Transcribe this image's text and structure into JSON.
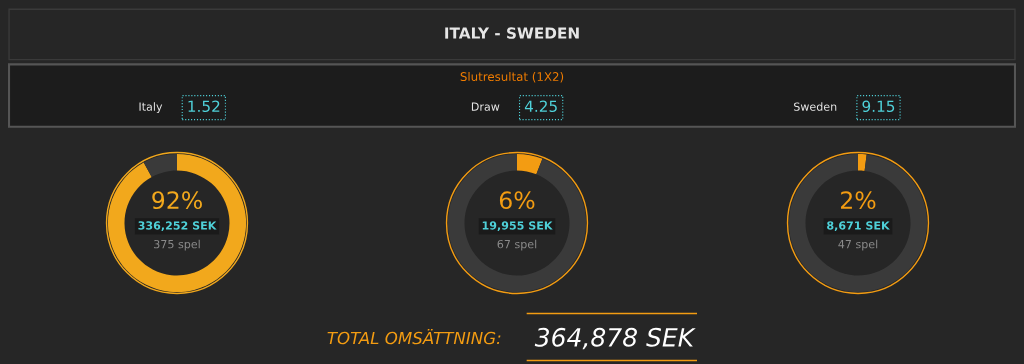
{
  "chart_data": [
    {
      "type": "other",
      "title": "ITALY - SWEDEN",
      "subtitle": "Slutresultat (1X2)",
      "annotations": [
        "Italy",
        "1.52",
        "Draw",
        "4.25",
        "Sweden",
        "9.15"
      ]
    },
    {
      "type": "donut",
      "categories": [
        null,
        null
      ],
      "values": [
        92,
        8
      ],
      "colors": [
        "#f2a81c",
        "#3a3a3a"
      ],
      "annotations": [
        "92%",
        "336,252 SEK",
        "375 spel"
      ]
    },
    {
      "type": "donut",
      "categories": [
        null,
        null
      ],
      "values": [
        6,
        94
      ],
      "colors": [
        "#f39c12",
        "#3a3a3a"
      ],
      "annotations": [
        "6%",
        "19,955 SEK",
        "67 spel"
      ]
    },
    {
      "type": "donut",
      "categories": [
        null,
        null
      ],
      "values": [
        2,
        98
      ],
      "colors": [
        "#f39c12",
        "#3a3a3a"
      ],
      "annotations": [
        "2%",
        "8,671 SEK",
        "47 spel"
      ]
    },
    {
      "type": "other",
      "annotations": [
        "TOTAL OMSÄTTNING:",
        "364,878 SEK"
      ]
    }
  ]
}
